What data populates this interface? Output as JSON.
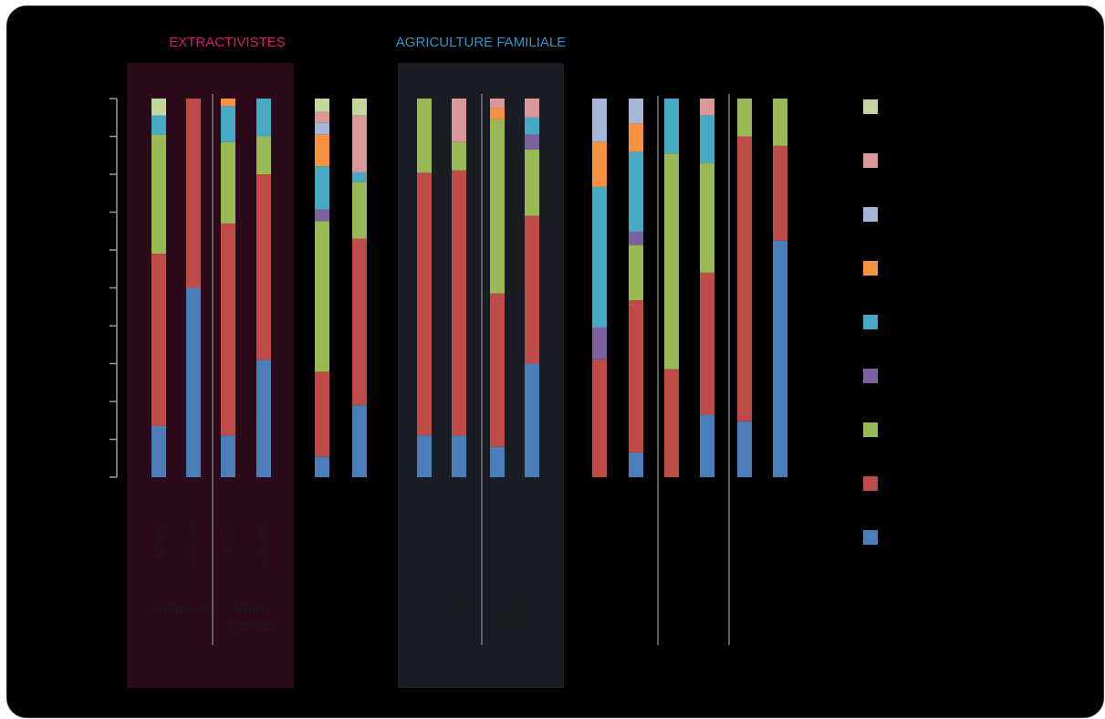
{
  "chart_data": {
    "type": "bar",
    "stacked": true,
    "normalized": true,
    "ylim": [
      0,
      100
    ],
    "y_ticks": 11,
    "groups": [
      {
        "title": "EXTRACTIVISTES",
        "color": "#e0157a",
        "background": "#2b0a19",
        "sites": [
          "Iratapuru",
          "Chico\nMendes"
        ]
      },
      {
        "title": "AGRICULTURE FAMILIALE",
        "color": "#2f95c9",
        "background": "#1a1d23",
        "sites": [
          "Anapu",
          "Ouro\nPreto"
        ]
      }
    ],
    "age_labels": [
      "- 45 ans",
      "+ 45 ans",
      "- 45 ans",
      "+ 45 ans",
      "",
      "",
      "- 45 ans",
      "+ 45 ans",
      "- 45 ans",
      "+ 45 ans",
      "",
      "",
      "",
      "",
      "",
      ""
    ],
    "categories": [
      "1",
      "2",
      "3",
      "4",
      "5",
      "6",
      "7",
      "8",
      "9",
      "10",
      "11",
      "12",
      "13",
      "14",
      "15",
      "16"
    ],
    "series": [
      {
        "color": "#4a7ebb",
        "values": [
          13.5,
          50,
          11,
          31,
          5.5,
          19,
          11,
          11,
          8,
          30,
          0,
          6.5,
          0,
          16.5,
          14,
          62.5
        ]
      },
      {
        "color": "#be4b48",
        "values": [
          45.5,
          50,
          56,
          49,
          22.5,
          44,
          69,
          70,
          40.5,
          39,
          26,
          40,
          28.5,
          37.5,
          71.5,
          25
        ]
      },
      {
        "color": "#98b954",
        "values": [
          31.5,
          0,
          21.5,
          10,
          40,
          15,
          19.5,
          7.5,
          46,
          17.5,
          0,
          14.5,
          57,
          29,
          9.5,
          12.5
        ]
      },
      {
        "color": "#7d60a0",
        "values": [
          0,
          0,
          0,
          0,
          3,
          0,
          0,
          0,
          0,
          4,
          7,
          3.5,
          0,
          0,
          0,
          0
        ]
      },
      {
        "color": "#46aac5",
        "values": [
          5,
          0,
          9.5,
          10,
          11.5,
          2.5,
          0,
          0,
          0,
          4.5,
          31,
          21,
          14.5,
          12.5,
          0,
          0
        ]
      },
      {
        "color": "#f69240",
        "values": [
          0,
          0,
          2,
          0,
          8.5,
          0,
          0,
          0,
          3,
          0,
          10,
          7.5,
          0,
          0,
          0,
          0
        ]
      },
      {
        "color": "#a5b6d9",
        "values": [
          0,
          0,
          0,
          0,
          3,
          0,
          0,
          0,
          0,
          0,
          9.5,
          6.5,
          0,
          0,
          0,
          0
        ]
      },
      {
        "color": "#d99795",
        "values": [
          0,
          0,
          0,
          0,
          3,
          15,
          0,
          11.5,
          2.5,
          5,
          0,
          0,
          0,
          4.5,
          0,
          0
        ]
      },
      {
        "color": "#c3d69b",
        "values": [
          4.5,
          0,
          0,
          0,
          3.5,
          4.5,
          0,
          0,
          0,
          0,
          0,
          0,
          0,
          0,
          0,
          0
        ]
      }
    ],
    "legend_placement": "right",
    "legend_order": [
      8,
      7,
      6,
      5,
      4,
      3,
      2,
      1,
      0
    ]
  }
}
